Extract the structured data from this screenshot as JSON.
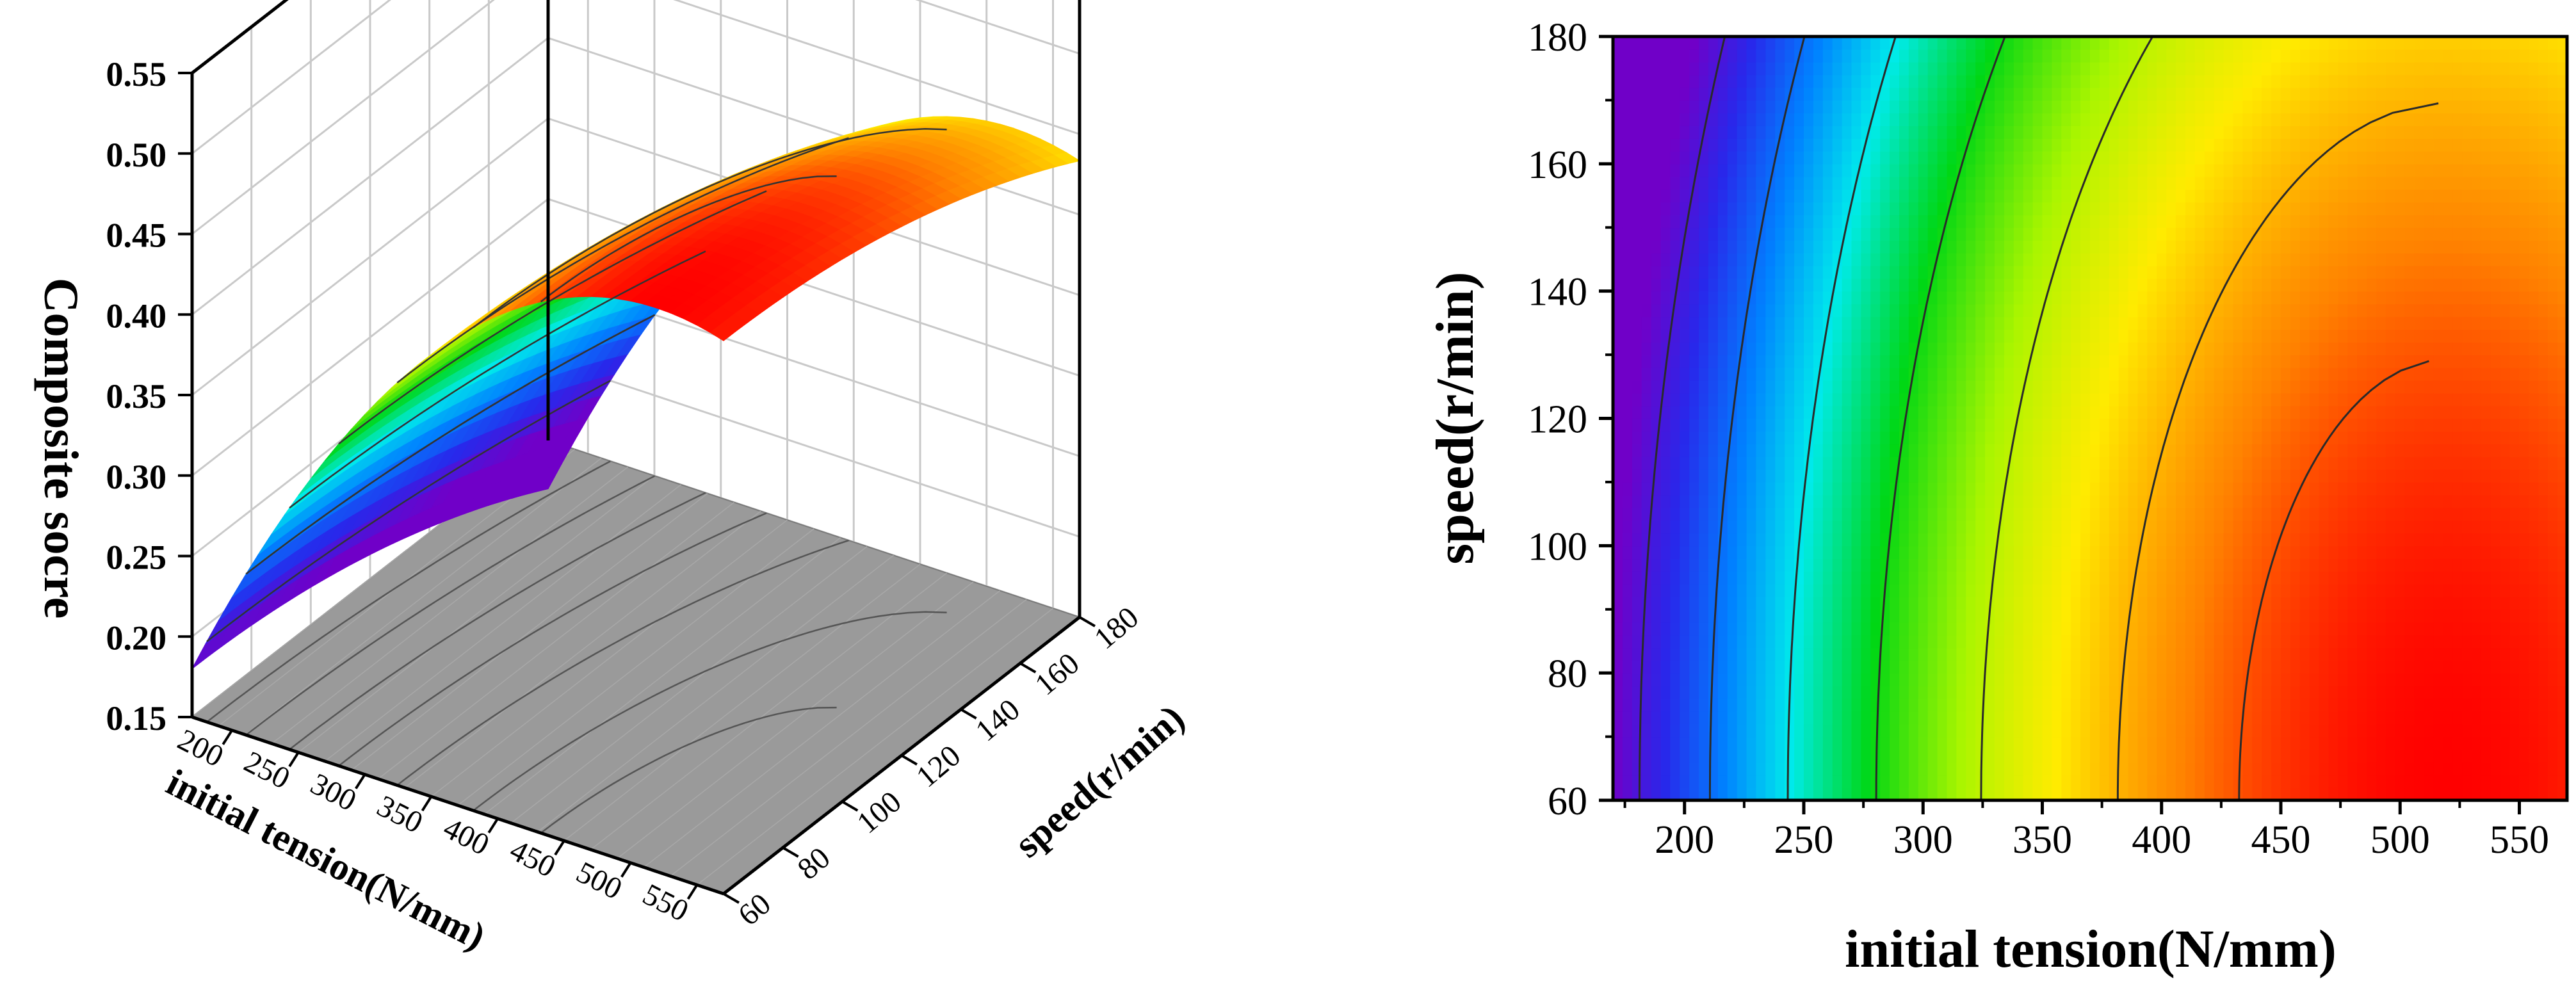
{
  "chart_data": [
    {
      "type": "surface3d",
      "zlabel": "Composite socre",
      "xlabel": "initial tension(N/mm)",
      "ylabel": "speed(r/min)",
      "x_ticks": [
        "200",
        "250",
        "300",
        "350",
        "400",
        "450",
        "500",
        "550"
      ],
      "y_ticks": [
        "60",
        "80",
        "100",
        "120",
        "140",
        "160",
        "180"
      ],
      "z_ticks": [
        "0.15",
        "0.20",
        "0.25",
        "0.30",
        "0.35",
        "0.40",
        "0.45",
        "0.50",
        "0.55"
      ],
      "xlim": [
        170,
        570
      ],
      "ylim": [
        60,
        180
      ],
      "zlim": [
        0.15,
        0.55
      ],
      "grid": true,
      "floor_projection": "gray contour",
      "colormap": "rainbow",
      "surface": {
        "description_values": "Composite score vs initial tension and speed",
        "corners": {
          "x170_y60": 0.18,
          "x570_y60": 0.49,
          "x170_y180": 0.26,
          "x570_y180": 0.44
        },
        "peak": {
          "x": 520,
          "y": 60,
          "z": 0.5
        }
      }
    },
    {
      "type": "contour",
      "xlabel": "initial tension(N/mm)",
      "ylabel": "speed(r/min)",
      "x_ticks": [
        "200",
        "250",
        "300",
        "350",
        "400",
        "450",
        "500",
        "550"
      ],
      "y_ticks": [
        "60",
        "80",
        "100",
        "120",
        "140",
        "160",
        "180"
      ],
      "xlim": [
        170,
        570
      ],
      "ylim": [
        60,
        180
      ],
      "colormap": "rainbow",
      "levels": [
        0.2,
        0.25,
        0.3,
        0.35,
        0.4,
        0.45,
        0.48
      ]
    }
  ]
}
